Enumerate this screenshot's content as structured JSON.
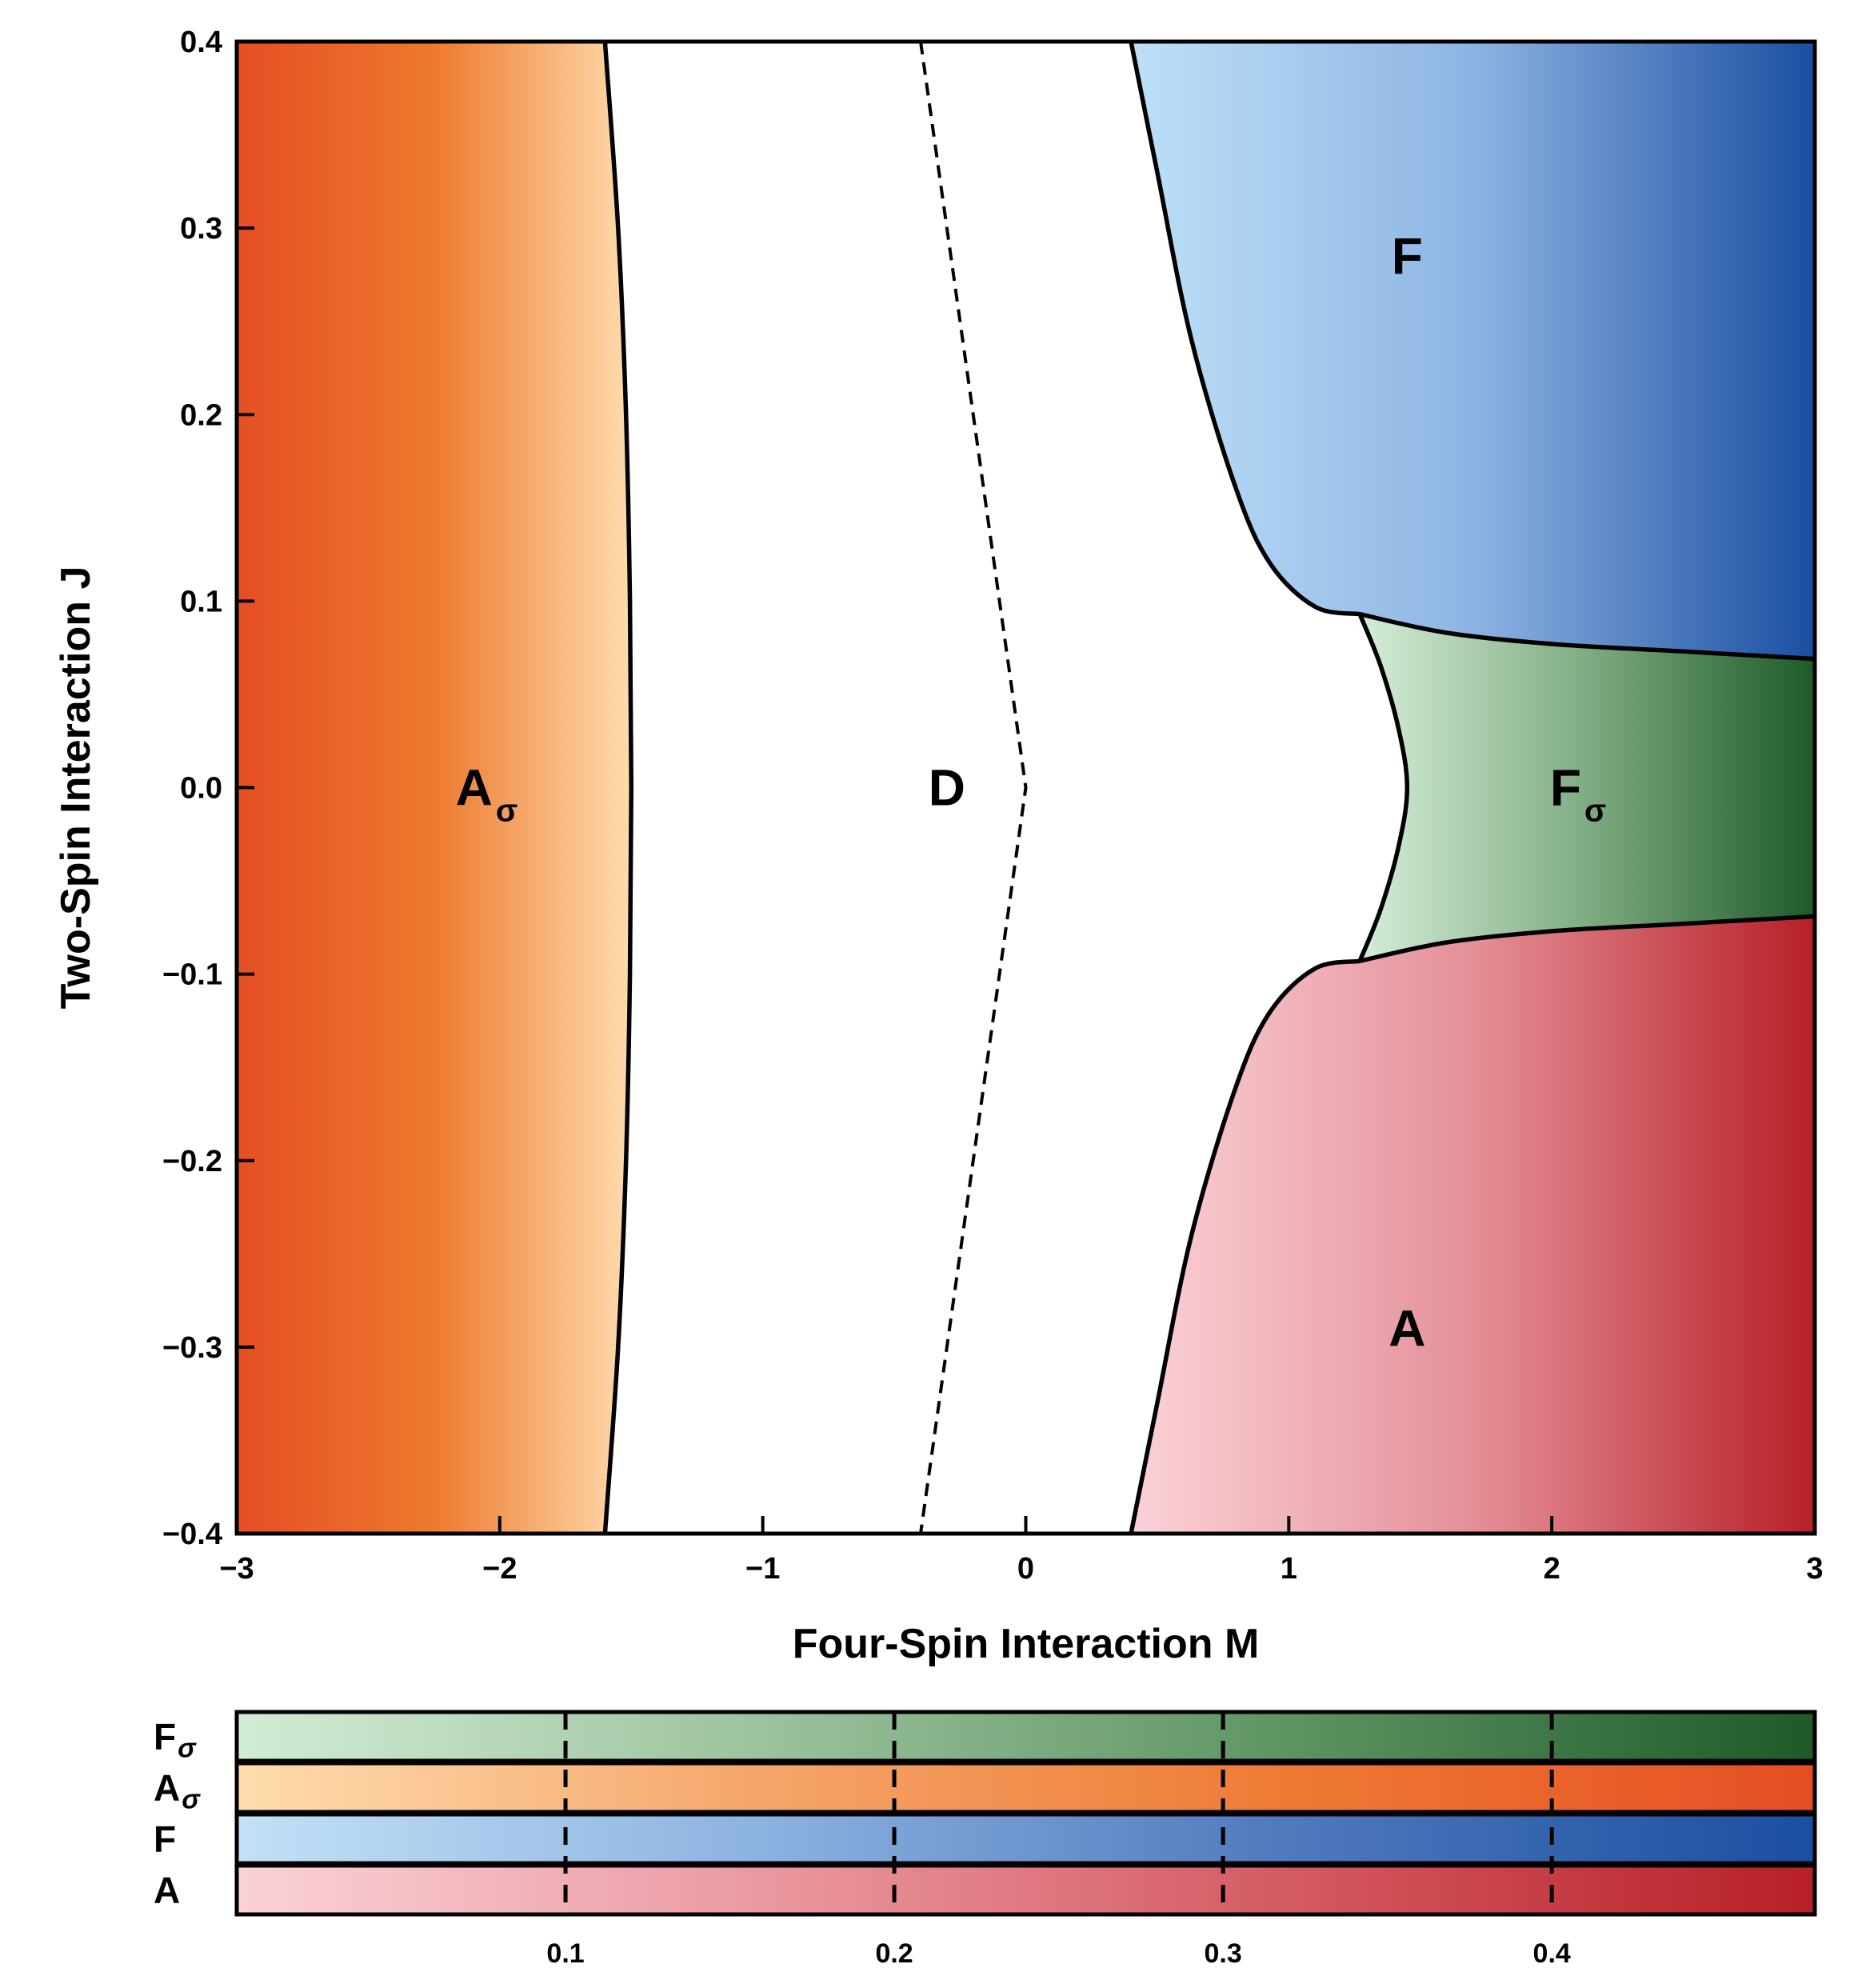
{
  "chart_data": [
    {
      "type": "phase_diagram",
      "title": "",
      "xlabel": "Four-Spin Interaction M",
      "ylabel": "Two-Spin Interaction J",
      "xlim": [
        -3,
        3
      ],
      "ylim": [
        -0.4,
        0.4
      ],
      "xticks": [
        -3,
        -2,
        -1,
        0,
        1,
        2,
        3
      ],
      "xtick_labels": [
        "−3",
        "−2",
        "−1",
        "0",
        "1",
        "2",
        "3"
      ],
      "yticks": [
        -0.4,
        -0.3,
        -0.2,
        -0.1,
        0.0,
        0.1,
        0.2,
        0.3,
        0.4
      ],
      "ytick_labels": [
        "−0.4",
        "−0.3",
        "−0.2",
        "−0.1",
        "0.0",
        "0.1",
        "0.2",
        "0.3",
        "0.4"
      ],
      "regions": [
        {
          "id": "A_sigma",
          "label": "A",
          "subscript": "σ",
          "label_at": [
            -2.05,
            0.0
          ],
          "gradient": [
            "#e54e24",
            "#ed7a2e",
            "#ffdcae"
          ]
        },
        {
          "id": "D",
          "label": "D",
          "subscript": "",
          "label_at": [
            -0.3,
            0.0
          ],
          "gradient": [
            "#ffffff"
          ]
        },
        {
          "id": "F",
          "label": "F",
          "subscript": "",
          "label_at": [
            1.45,
            0.285
          ],
          "gradient": [
            "#bde0f7",
            "#8eb4e3",
            "#1a4ea0"
          ]
        },
        {
          "id": "F_sigma",
          "label": "F",
          "subscript": "σ",
          "label_at": [
            2.1,
            0.0
          ],
          "gradient": [
            "#d6eed8",
            "#7fac82",
            "#1e5a29"
          ]
        },
        {
          "id": "A",
          "label": "A",
          "subscript": "",
          "label_at": [
            1.45,
            -0.29
          ],
          "gradient": [
            "#fad2d8",
            "#e59098",
            "#b71f27"
          ]
        }
      ],
      "boundaries": [
        {
          "id": "A_sigma-D",
          "style": "solid",
          "points": [
            [
              -1.6,
              0.4
            ],
            [
              -1.55,
              0.3
            ],
            [
              -1.52,
              0.2
            ],
            [
              -1.505,
              0.1
            ],
            [
              -1.5,
              0.0
            ],
            [
              -1.505,
              -0.1
            ],
            [
              -1.52,
              -0.2
            ],
            [
              -1.55,
              -0.3
            ],
            [
              -1.6,
              -0.4
            ]
          ]
        },
        {
          "id": "D-crossover",
          "style": "dashed",
          "points": [
            [
              -0.4,
              0.4
            ],
            [
              0.0,
              0.0
            ],
            [
              -0.4,
              -0.4
            ]
          ]
        },
        {
          "id": "D-F",
          "style": "solid",
          "points": [
            [
              0.4,
              0.4
            ],
            [
              0.5,
              0.33
            ],
            [
              0.63,
              0.24
            ],
            [
              0.8,
              0.16
            ],
            [
              0.93,
              0.12
            ],
            [
              1.1,
              0.097
            ],
            [
              1.27,
              0.093
            ]
          ]
        },
        {
          "id": "F-F_sigma",
          "style": "solid",
          "points": [
            [
              1.27,
              0.093
            ],
            [
              1.6,
              0.083
            ],
            [
              2.0,
              0.077
            ],
            [
              2.5,
              0.073
            ],
            [
              3.0,
              0.069
            ]
          ]
        },
        {
          "id": "D-F_sigma",
          "style": "solid",
          "points": [
            [
              1.27,
              0.093
            ],
            [
              1.35,
              0.065
            ],
            [
              1.42,
              0.03
            ],
            [
              1.45,
              0.0
            ],
            [
              1.42,
              -0.03
            ],
            [
              1.35,
              -0.065
            ],
            [
              1.27,
              -0.093
            ]
          ]
        },
        {
          "id": "A-F_sigma",
          "style": "solid",
          "points": [
            [
              1.27,
              -0.093
            ],
            [
              1.6,
              -0.083
            ],
            [
              2.0,
              -0.077
            ],
            [
              2.5,
              -0.073
            ],
            [
              3.0,
              -0.069
            ]
          ]
        },
        {
          "id": "D-A",
          "style": "solid",
          "points": [
            [
              1.27,
              -0.093
            ],
            [
              1.1,
              -0.097
            ],
            [
              0.93,
              -0.12
            ],
            [
              0.8,
              -0.16
            ],
            [
              0.63,
              -0.24
            ],
            [
              0.5,
              -0.33
            ],
            [
              0.4,
              -0.4
            ]
          ]
        }
      ]
    },
    {
      "type": "colorbar",
      "title": "",
      "xlim": [
        0.0,
        0.48
      ],
      "xticks": [
        0.1,
        0.2,
        0.3,
        0.4
      ],
      "xtick_labels": [
        "0.1",
        "0.2",
        "0.3",
        "0.4"
      ],
      "rows": [
        {
          "label": "F",
          "subscript": "σ",
          "colors": [
            "#d3ecd5",
            "#9cc29e",
            "#5e9462",
            "#1e5a29"
          ]
        },
        {
          "label": "A",
          "subscript": "σ",
          "colors": [
            "#ffdcae",
            "#f5a56a",
            "#ee7a34",
            "#e54e24"
          ]
        },
        {
          "label": "F",
          "subscript": "",
          "colors": [
            "#c3e0f6",
            "#8cb2e0",
            "#4f79bd",
            "#1a4ea0"
          ]
        },
        {
          "label": "A",
          "subscript": "",
          "colors": [
            "#fad2d8",
            "#eb98a0",
            "#d45a62",
            "#b71f27"
          ]
        }
      ]
    }
  ]
}
